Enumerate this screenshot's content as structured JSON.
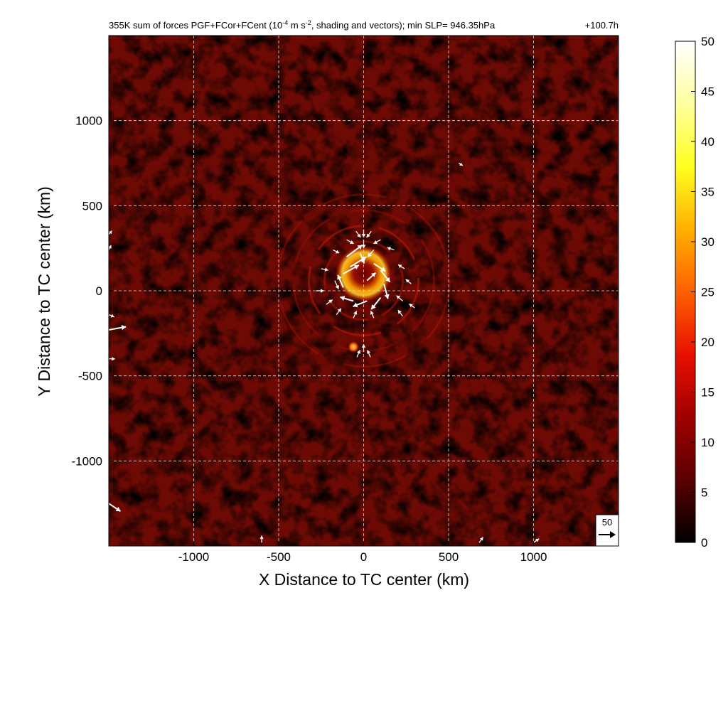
{
  "chart_data": {
    "type": "heatmap",
    "title": "355K sum of forces PGF+FCor+FCent (10",
    "title_sup_1": "-4",
    "title_mid": " m s",
    "title_sup_2": "-2",
    "title_end": ", shading and vectors); min SLP= 946.35hPa",
    "time_label": "+100.7h",
    "xlabel": "X Distance to TC center (km)",
    "ylabel": "Y Distance to TC center (km)",
    "xlim": [
      -1500,
      1500
    ],
    "ylim": [
      -1500,
      1500
    ],
    "x_ticks": [
      -1000,
      -500,
      0,
      500,
      1000
    ],
    "y_ticks": [
      1000,
      500,
      0,
      -500,
      -1000
    ],
    "x_tick_labels": [
      "-1000",
      "-500",
      "0",
      "500",
      "1000"
    ],
    "y_tick_labels": [
      "1000",
      "500",
      "0",
      "-500",
      "-1000"
    ],
    "grid": true,
    "grid_style": "dashed white",
    "colorbar": {
      "min": 0,
      "max": 50,
      "ticks": [
        0,
        5,
        10,
        15,
        20,
        25,
        30,
        35,
        40,
        45,
        50
      ],
      "tick_labels": [
        "0",
        "5",
        "10",
        "15",
        "20",
        "25",
        "30",
        "35",
        "40",
        "45",
        "50"
      ],
      "colormap": "hot",
      "colors": [
        "#000000",
        "#5a0000",
        "#a00000",
        "#e81000",
        "#ff6000",
        "#ffb000",
        "#ffff20",
        "#ffffa0",
        "#ffffff"
      ]
    },
    "reference_vector": {
      "label": "50",
      "magnitude": 50
    },
    "background_value_range": [
      0,
      12
    ],
    "features": [
      {
        "name": "eyewall",
        "x": 0,
        "y": 100,
        "radius_km": 100,
        "value": 42
      },
      {
        "name": "spiral-band",
        "x": -150,
        "y": 150,
        "value": 20
      },
      {
        "name": "hot-spot",
        "x": -60,
        "y": -330,
        "value": 30
      }
    ],
    "vectors": [
      {
        "x": 0,
        "y": 360,
        "u": 0,
        "v": -20
      },
      {
        "x": 45,
        "y": 350,
        "u": -12,
        "v": -16
      },
      {
        "x": -45,
        "y": 350,
        "u": 12,
        "v": -16
      },
      {
        "x": 100,
        "y": 300,
        "u": -18,
        "v": -10
      },
      {
        "x": -100,
        "y": 300,
        "u": 18,
        "v": -10
      },
      {
        "x": 0,
        "y": 300,
        "u": 0,
        "v": -22
      },
      {
        "x": 180,
        "y": 240,
        "u": -18,
        "v": 6
      },
      {
        "x": -180,
        "y": 240,
        "u": 16,
        "v": -8
      },
      {
        "x": 240,
        "y": 130,
        "u": -16,
        "v": 10
      },
      {
        "x": -250,
        "y": 130,
        "u": 18,
        "v": -4
      },
      {
        "x": 280,
        "y": 40,
        "u": -14,
        "v": 12
      },
      {
        "x": -280,
        "y": 0,
        "u": 20,
        "v": 0
      },
      {
        "x": 230,
        "y": -60,
        "u": -16,
        "v": 14
      },
      {
        "x": -220,
        "y": -80,
        "u": 16,
        "v": 12
      },
      {
        "x": 230,
        "y": -150,
        "u": -12,
        "v": 16
      },
      {
        "x": -160,
        "y": -140,
        "u": 12,
        "v": 16
      },
      {
        "x": -60,
        "y": -160,
        "u": 8,
        "v": 18
      },
      {
        "x": 60,
        "y": -160,
        "u": -8,
        "v": 18
      },
      {
        "x": 0,
        "y": -360,
        "u": 0,
        "v": 20
      },
      {
        "x": 40,
        "y": -390,
        "u": -8,
        "v": 18
      },
      {
        "x": -40,
        "y": -390,
        "u": 8,
        "v": 18
      },
      {
        "x": -100,
        "y": 200,
        "u": 40,
        "v": 30
      },
      {
        "x": -80,
        "y": 140,
        "u": 42,
        "v": 26
      },
      {
        "x": -120,
        "y": 100,
        "u": 40,
        "v": 22
      },
      {
        "x": 60,
        "y": 160,
        "u": 30,
        "v": -20
      },
      {
        "x": 100,
        "y": 120,
        "u": 24,
        "v": -30
      },
      {
        "x": 120,
        "y": 40,
        "u": 10,
        "v": -38
      },
      {
        "x": 100,
        "y": -40,
        "u": -24,
        "v": -30
      },
      {
        "x": 20,
        "y": -60,
        "u": -36,
        "v": -14
      },
      {
        "x": -60,
        "y": -60,
        "u": -34,
        "v": 10
      },
      {
        "x": -120,
        "y": 20,
        "u": -14,
        "v": 32
      },
      {
        "x": 20,
        "y": 60,
        "u": 22,
        "v": 20
      },
      {
        "x": -20,
        "y": 220,
        "u": 10,
        "v": -26
      },
      {
        "x": 60,
        "y": 240,
        "u": -16,
        "v": -18
      },
      {
        "x": -170,
        "y": 60,
        "u": 10,
        "v": -22
      },
      {
        "x": 300,
        "y": -100,
        "u": -14,
        "v": 10
      },
      {
        "x": -1500,
        "y": -230,
        "u": 44,
        "v": 8
      },
      {
        "x": -1500,
        "y": -1250,
        "u": 30,
        "v": -20
      },
      {
        "x": -1500,
        "y": -140,
        "u": 14,
        "v": -6
      },
      {
        "x": -1500,
        "y": -400,
        "u": 16,
        "v": 0
      },
      {
        "x": -1500,
        "y": 240,
        "u": 6,
        "v": 12
      },
      {
        "x": -1500,
        "y": 330,
        "u": 8,
        "v": 10
      },
      {
        "x": -600,
        "y": -1480,
        "u": 0,
        "v": 18
      },
      {
        "x": 680,
        "y": -1480,
        "u": 10,
        "v": 14
      },
      {
        "x": 1000,
        "y": -1480,
        "u": 14,
        "v": 10
      },
      {
        "x": 560,
        "y": 750,
        "u": 10,
        "v": -6
      }
    ]
  }
}
